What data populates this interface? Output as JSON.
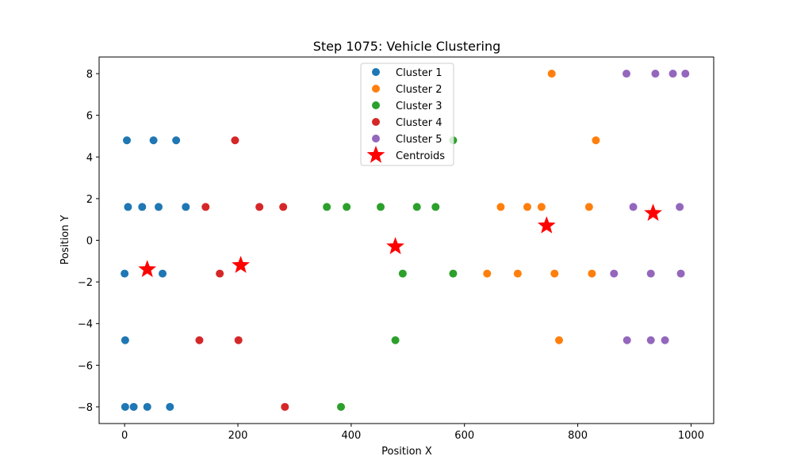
{
  "chart_data": {
    "type": "scatter",
    "title": "Step 1075: Vehicle Clustering",
    "xlabel": "Position X",
    "ylabel": "Position Y",
    "xlim": [
      -45,
      1040
    ],
    "ylim": [
      -8.8,
      8.8
    ],
    "xticks": [
      0,
      200,
      400,
      600,
      800,
      1000
    ],
    "yticks": [
      -8,
      -6,
      -4,
      -2,
      0,
      2,
      4,
      6,
      8
    ],
    "xtick_labels": [
      "0",
      "200",
      "400",
      "600",
      "800",
      "1000"
    ],
    "ytick_labels": [
      "−8",
      "−6",
      "−4",
      "−2",
      "0",
      "2",
      "4",
      "6",
      "8"
    ],
    "grid": false,
    "legend_position": "top-center",
    "series": [
      {
        "name": "Cluster 1",
        "color": "#1f77b4",
        "marker": "circle",
        "points": [
          [
            4,
            4.8
          ],
          [
            51,
            4.8
          ],
          [
            91,
            4.8
          ],
          [
            6,
            1.6
          ],
          [
            31,
            1.6
          ],
          [
            60,
            1.6
          ],
          [
            108,
            1.6
          ],
          [
            0,
            -1.6
          ],
          [
            67,
            -1.6
          ],
          [
            1,
            -4.8
          ],
          [
            1,
            -8
          ],
          [
            16,
            -8
          ],
          [
            40,
            -8
          ],
          [
            80,
            -8
          ]
        ]
      },
      {
        "name": "Cluster 2",
        "color": "#ff7f0e",
        "marker": "circle",
        "points": [
          [
            754,
            8
          ],
          [
            832,
            4.8
          ],
          [
            664,
            1.6
          ],
          [
            711,
            1.6
          ],
          [
            736,
            1.6
          ],
          [
            820,
            1.6
          ],
          [
            640,
            -1.6
          ],
          [
            694,
            -1.6
          ],
          [
            759,
            -1.6
          ],
          [
            825,
            -1.6
          ],
          [
            767,
            -4.8
          ]
        ]
      },
      {
        "name": "Cluster 3",
        "color": "#2ca02c",
        "marker": "circle",
        "points": [
          [
            580,
            4.8
          ],
          [
            357,
            1.6
          ],
          [
            392,
            1.6
          ],
          [
            452,
            1.6
          ],
          [
            516,
            1.6
          ],
          [
            549,
            1.6
          ],
          [
            491,
            -1.6
          ],
          [
            580,
            -1.6
          ],
          [
            478,
            -4.8
          ],
          [
            382,
            -8
          ]
        ]
      },
      {
        "name": "Cluster 4",
        "color": "#d62728",
        "marker": "circle",
        "points": [
          [
            195,
            4.8
          ],
          [
            143,
            1.6
          ],
          [
            238,
            1.6
          ],
          [
            280,
            1.6
          ],
          [
            168,
            -1.6
          ],
          [
            132,
            -4.8
          ],
          [
            201,
            -4.8
          ],
          [
            283,
            -8
          ]
        ]
      },
      {
        "name": "Cluster 5",
        "color": "#9467bd",
        "marker": "circle",
        "points": [
          [
            886,
            8
          ],
          [
            937,
            8
          ],
          [
            968,
            8
          ],
          [
            990,
            8
          ],
          [
            898,
            1.6
          ],
          [
            980,
            1.6
          ],
          [
            864,
            -1.6
          ],
          [
            929,
            -1.6
          ],
          [
            982,
            -1.6
          ],
          [
            887,
            -4.8
          ],
          [
            929,
            -4.8
          ],
          [
            954,
            -4.8
          ]
        ]
      },
      {
        "name": "Centroids",
        "color": "#ff0000",
        "marker": "star",
        "points": [
          [
            40,
            -1.4
          ],
          [
            205,
            -1.2
          ],
          [
            478,
            -0.3
          ],
          [
            745,
            0.7
          ],
          [
            933,
            1.3
          ]
        ]
      }
    ]
  }
}
